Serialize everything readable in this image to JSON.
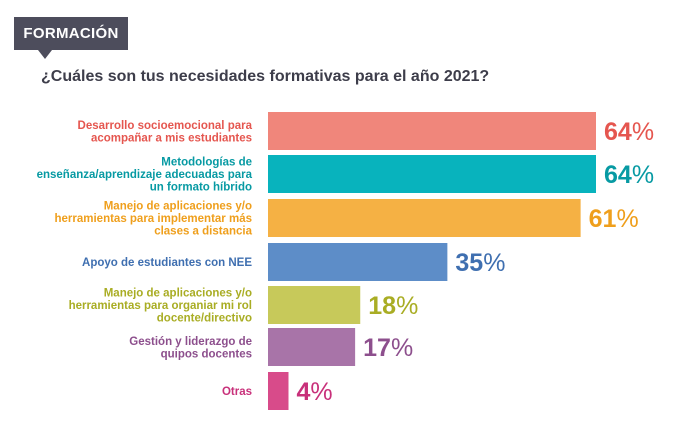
{
  "header": {
    "tag": "FORMACIÓN",
    "question": "¿Cuáles son tus necesidades formativas para el año 2021?"
  },
  "chart_data": {
    "type": "bar",
    "orientation": "horizontal",
    "title": "¿Cuáles son tus necesidades formativas para el año 2021?",
    "unit": "%",
    "xlim": [
      0,
      64
    ],
    "categories": [
      [
        "Desarrollo socioemocional para",
        "acompañar a mis estudiantes"
      ],
      [
        "Metodologías de",
        "enseñanza/aprendizaje adecuadas para",
        "un formato híbrido"
      ],
      [
        "Manejo de aplicaciones y/o",
        "herramientas para implementar más",
        "clases a distancia"
      ],
      [
        "Apoyo de estudiantes con NEE"
      ],
      [
        "Manejo de aplicaciones y/o",
        "herramientas para organiar mi rol",
        "docente/directivo"
      ],
      [
        "Gestión y liderazgo de",
        "quipos docentes"
      ],
      [
        "Otras"
      ]
    ],
    "values": [
      64,
      64,
      61,
      35,
      18,
      17,
      4
    ],
    "colors": [
      "#f0867b",
      "#08b3bd",
      "#f5b144",
      "#5d8dc8",
      "#c7c95a",
      "#a874a8",
      "#d84b8a"
    ],
    "label_colors": [
      "#e5564f",
      "#079aa3",
      "#ef9f1c",
      "#3f6fb0",
      "#a9ad24",
      "#8d4f8d",
      "#c8307a"
    ],
    "legend": "none",
    "grid": false
  }
}
